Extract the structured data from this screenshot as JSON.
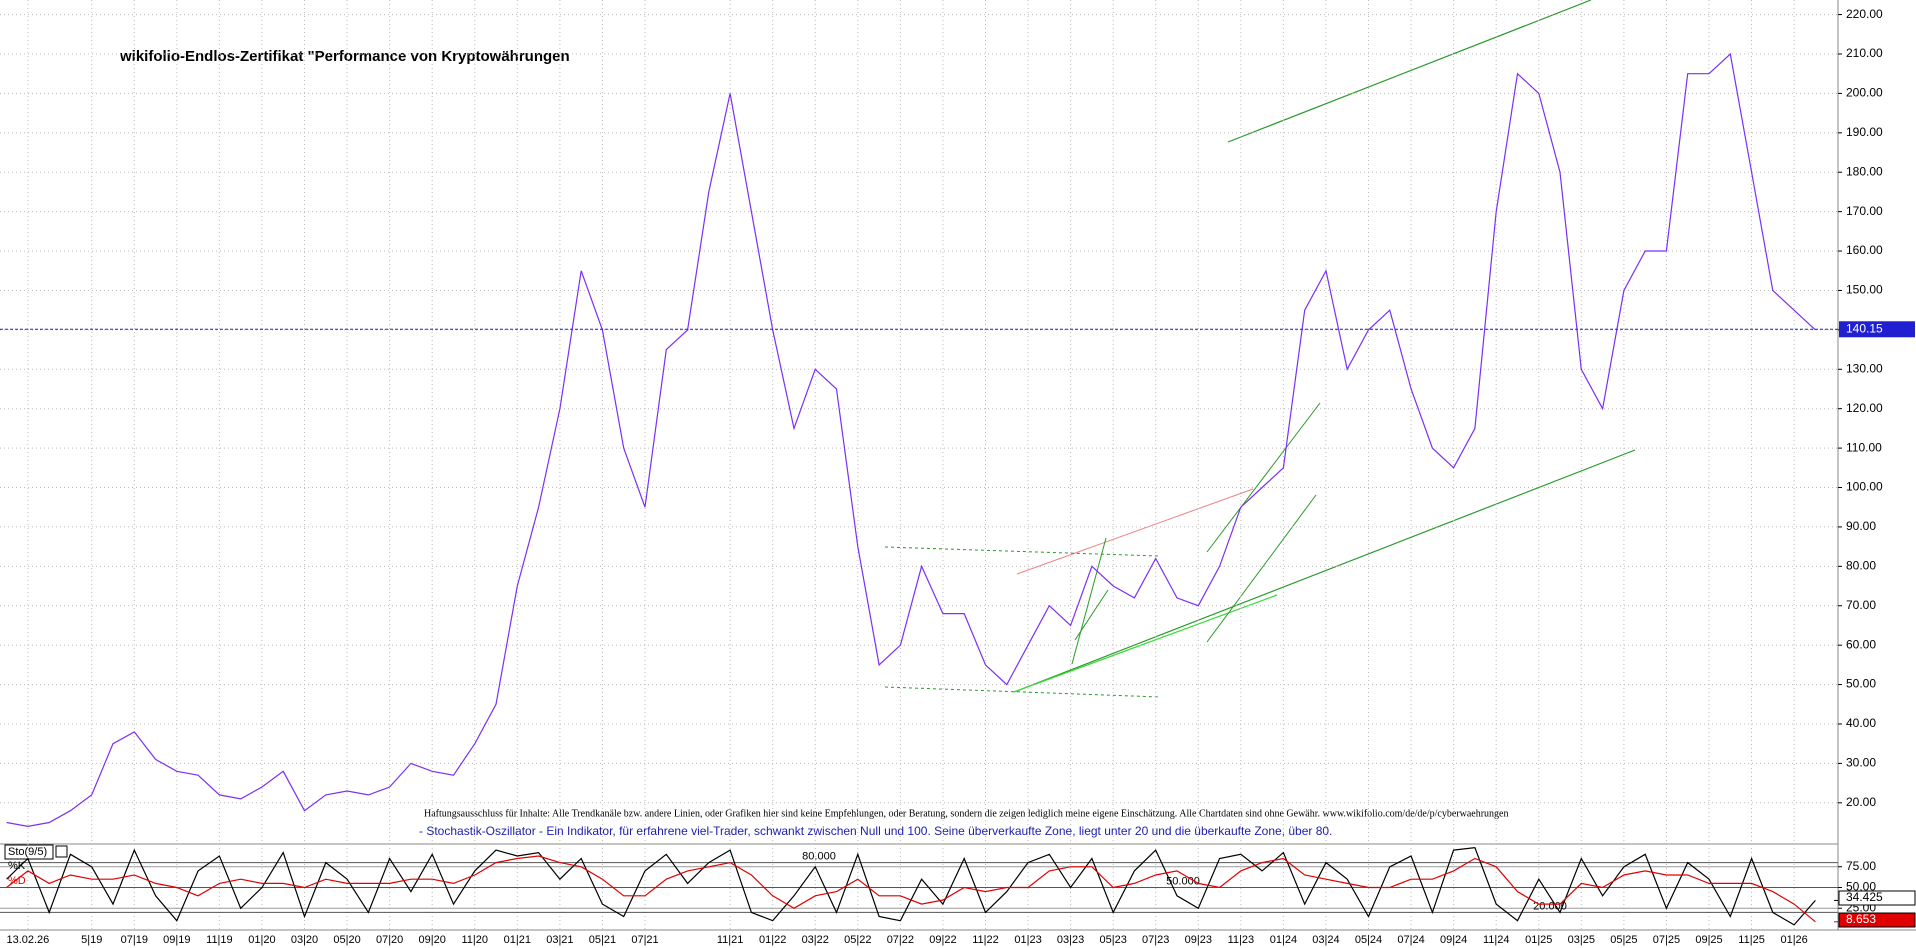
{
  "chart_data": [
    {
      "type": "line",
      "title": "wikifolio-Endlos-Zertifikat \"Performance von Kryptowährungen",
      "annotations": [
        "Haftungsausschluss für Inhalte: Alle Trendkanäle bzw. andere Linien, oder Grafiken hier sind keine Empfehlungen, oder Beratung, sondern die zeigen lediglich meine eigene Einschätzung. Alle Chartdaten sind ohne Gewähr. www.wikifolio.com/de/de/p/cyberwaehrungen"
      ],
      "categories": [
        null,
        "13.02.26",
        null,
        null,
        "5|19",
        null,
        "07|19",
        null,
        "09|19",
        null,
        "11|19",
        null,
        "01|20",
        null,
        "03|20",
        null,
        "05|20",
        null,
        "07|20",
        null,
        "09|20",
        null,
        "11|20",
        null,
        "01|21",
        null,
        "03|21",
        null,
        "05|21",
        null,
        "07|21",
        null,
        null,
        null,
        "11|21",
        null,
        "01|22",
        null,
        "03|22",
        null,
        "05|22",
        null,
        "07|22",
        null,
        "09|22",
        null,
        "11|22",
        null,
        "01|23",
        null,
        "03|23",
        null,
        "05|23",
        null,
        "07|23",
        null,
        "09|23",
        null,
        "11|23",
        null,
        "01|24",
        null,
        "03|24",
        null,
        "05|24",
        null,
        "07|24",
        null,
        "09|24",
        null,
        "11|24",
        null,
        "01|25",
        null,
        "03|25",
        null,
        "05|25",
        null,
        "07|25",
        null,
        "09|25",
        null,
        "11|25",
        null,
        "01|26",
        null
      ],
      "color": "#7b2ff7",
      "values": [
        15,
        14,
        15,
        18,
        22,
        35,
        38,
        31,
        28,
        27,
        22,
        21,
        24,
        28,
        18,
        22,
        23,
        22,
        24,
        30,
        28,
        27,
        35,
        45,
        75,
        95,
        120,
        155,
        140,
        110,
        95,
        135,
        140,
        175,
        200,
        170,
        140,
        115,
        130,
        125,
        85,
        55,
        60,
        80,
        68,
        68,
        55,
        50,
        60,
        70,
        65,
        80,
        75,
        72,
        82,
        72,
        70,
        80,
        95,
        100,
        105,
        145,
        155,
        130,
        140,
        145,
        125,
        110,
        105,
        115,
        170,
        205,
        200,
        180,
        130,
        120,
        150,
        160,
        160,
        205,
        205,
        210,
        180,
        150,
        145,
        140
      ],
      "last_value": 140.15,
      "ylim": [
        9.8,
        223.7
      ],
      "yticks": [
        {
          "value": 20,
          "label": "20.00"
        },
        {
          "value": 30,
          "label": "30.00"
        },
        {
          "value": 40,
          "label": "40.00"
        },
        {
          "value": 50,
          "label": "50.00"
        },
        {
          "value": 60,
          "label": "60.00"
        },
        {
          "value": 70,
          "label": "70.00"
        },
        {
          "value": 80,
          "label": "80.00"
        },
        {
          "value": 90,
          "label": "90.00"
        },
        {
          "value": 100,
          "label": "100.00"
        },
        {
          "value": 110,
          "label": "110.00"
        },
        {
          "value": 120,
          "label": "120.00"
        },
        {
          "value": 130,
          "label": "130.00"
        },
        {
          "value": 140,
          "label": "140.00"
        },
        {
          "value": 150,
          "label": "150.00"
        },
        {
          "value": 160,
          "label": "160.00"
        },
        {
          "value": 170,
          "label": "170.00"
        },
        {
          "value": 180,
          "label": "180.00"
        },
        {
          "value": 190,
          "label": "190.00"
        },
        {
          "value": 200,
          "label": "200.00"
        },
        {
          "value": 210,
          "label": "210.00"
        },
        {
          "value": 220,
          "label": "220.00"
        }
      ],
      "grid": true
    },
    {
      "type": "line",
      "label": "Sto(9/5)",
      "description": "- Stochastik-Oszillator - Ein Indikator, für erfahrene viel-Trader, schwankt zwischen Null und 100. Seine überverkaufte Zone, liegt unter 20 und die überkaufte Zone, über 80.",
      "series": [
        {
          "name": "%K",
          "color": "#000000",
          "values": [
            60,
            85,
            20,
            90,
            75,
            30,
            95,
            40,
            10,
            70,
            88,
            25,
            50,
            92,
            15,
            80,
            60,
            20,
            85,
            45,
            90,
            30,
            70,
            95,
            88,
            92,
            60,
            85,
            30,
            15,
            70,
            90,
            55,
            80,
            95,
            20,
            10,
            40,
            75,
            20,
            90,
            15,
            10,
            60,
            30,
            85,
            20,
            45,
            80,
            90,
            50,
            85,
            20,
            70,
            95,
            40,
            25,
            85,
            90,
            70,
            92,
            30,
            80,
            60,
            15,
            75,
            88,
            20,
            95,
            98,
            30,
            10,
            60,
            20,
            85,
            40,
            75,
            90,
            25,
            80,
            60,
            15,
            85,
            20,
            5,
            34.425
          ]
        },
        {
          "name": "%D",
          "color": "#e00000",
          "values": [
            50,
            70,
            55,
            65,
            60,
            60,
            65,
            55,
            50,
            40,
            55,
            60,
            55,
            55,
            50,
            60,
            55,
            55,
            55,
            60,
            60,
            55,
            65,
            80,
            85,
            88,
            80,
            75,
            60,
            40,
            40,
            60,
            70,
            75,
            80,
            65,
            40,
            25,
            40,
            45,
            60,
            40,
            40,
            30,
            35,
            50,
            45,
            50,
            50,
            70,
            75,
            75,
            50,
            55,
            65,
            70,
            55,
            50,
            70,
            80,
            85,
            65,
            60,
            55,
            50,
            50,
            60,
            60,
            70,
            85,
            75,
            45,
            30,
            30,
            55,
            50,
            65,
            70,
            65,
            65,
            55,
            55,
            55,
            45,
            30,
            8.653
          ]
        }
      ],
      "levels": [
        {
          "value": 80,
          "label": "80.000"
        },
        {
          "value": 50,
          "label": "50.000"
        },
        {
          "value": 20,
          "label": "20.000"
        }
      ],
      "ylim": [
        0,
        100
      ],
      "yticks": [
        {
          "value": 75,
          "label": "75.00"
        },
        {
          "value": 50,
          "label": "50.00"
        },
        {
          "value": 25,
          "label": "25.00"
        }
      ],
      "grid": true
    }
  ]
}
